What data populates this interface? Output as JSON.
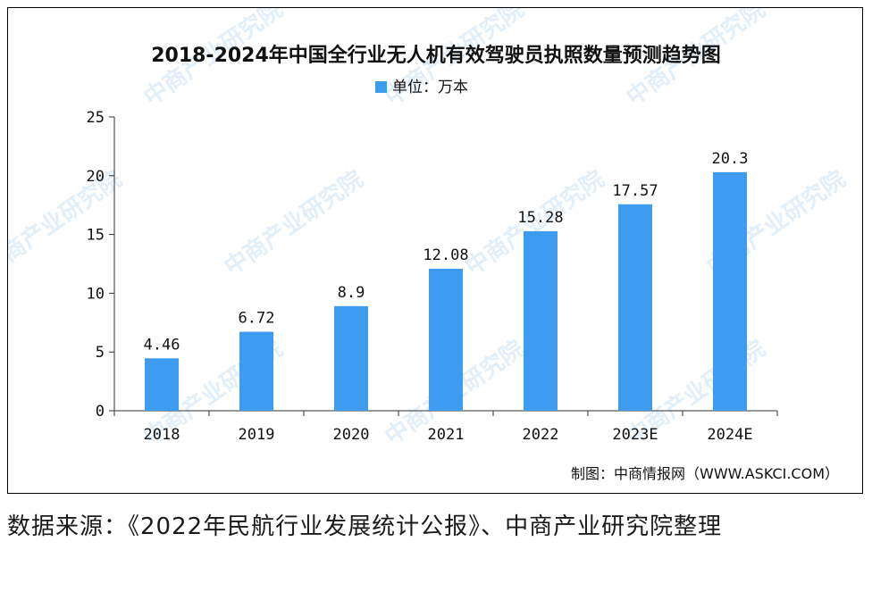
{
  "chart_data": {
    "type": "bar",
    "title": "2018-2024年中国全行业无人机有效驾驶员执照数量预测趋势图",
    "legend": "单位：万本",
    "categories": [
      "2018",
      "2019",
      "2020",
      "2021",
      "2022",
      "2023E",
      "2024E"
    ],
    "values": [
      4.46,
      6.72,
      8.9,
      12.08,
      15.28,
      17.57,
      20.3
    ],
    "value_labels": [
      "4.46",
      "6.72",
      "8.9",
      "12.08",
      "15.28",
      "17.57",
      "20.3"
    ],
    "yticks": [
      "0",
      "5",
      "10",
      "15",
      "20",
      "25"
    ],
    "ylim": [
      0,
      25
    ],
    "bar_color": "#3d9cf0",
    "grid": false,
    "legend_position": "top-center",
    "credit": "制图：中商情报网（WWW.ASKCI.COM）",
    "watermark_text": "中商产业研究院",
    "watermark_color": "#cfe6f7"
  },
  "source_note": "数据来源：《2022年民航行业发展统计公报》、中商产业研究院整理"
}
